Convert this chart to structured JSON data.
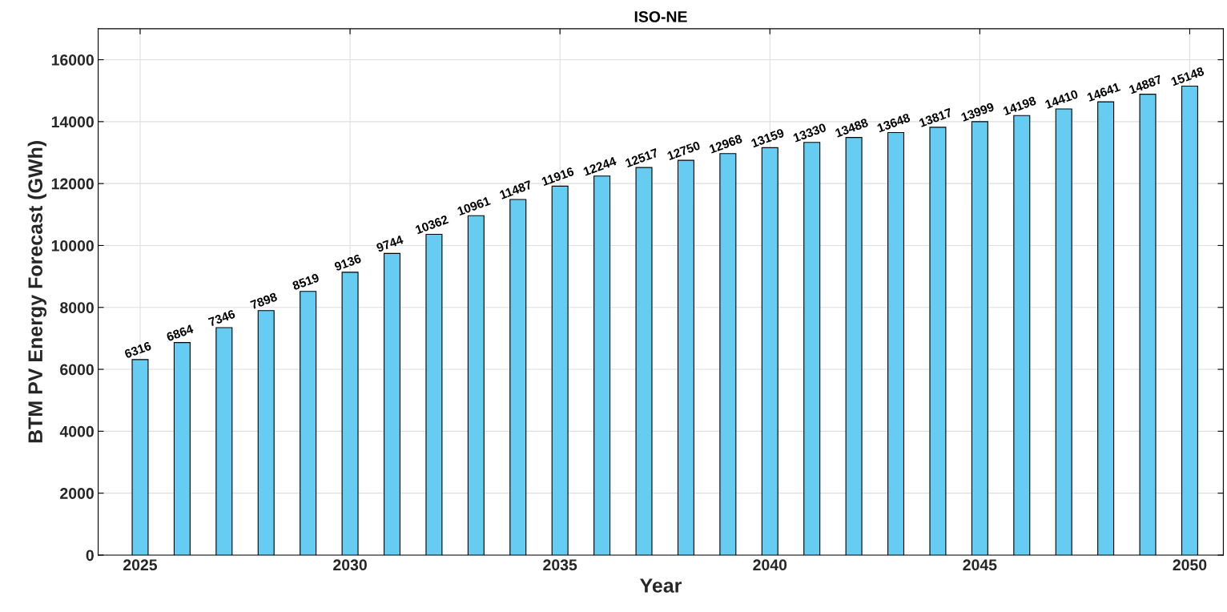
{
  "chart_data": {
    "type": "bar",
    "title": "ISO-NE",
    "xlabel": "Year",
    "ylabel": "BTM PV Energy Forecast (GWh)",
    "x": [
      2025,
      2026,
      2027,
      2028,
      2029,
      2030,
      2031,
      2032,
      2033,
      2034,
      2035,
      2036,
      2037,
      2038,
      2039,
      2040,
      2041,
      2042,
      2043,
      2044,
      2045,
      2046,
      2047,
      2048,
      2049,
      2050
    ],
    "values": [
      6316,
      6864,
      7346,
      7898,
      8519,
      9136,
      9744,
      10362,
      10961,
      11487,
      11916,
      12244,
      12517,
      12750,
      12968,
      13159,
      13330,
      13488,
      13648,
      13817,
      13999,
      14198,
      14410,
      14641,
      14887,
      15148
    ],
    "color": "#66ccf2",
    "xlim": [
      2024,
      2050.8
    ],
    "xticks": [
      2025,
      2030,
      2035,
      2040,
      2045,
      2050
    ],
    "ylim": [
      0,
      17000
    ],
    "yticks": [
      0,
      2000,
      4000,
      6000,
      8000,
      10000,
      12000,
      14000,
      16000
    ],
    "grid": true,
    "data_labels": true
  }
}
